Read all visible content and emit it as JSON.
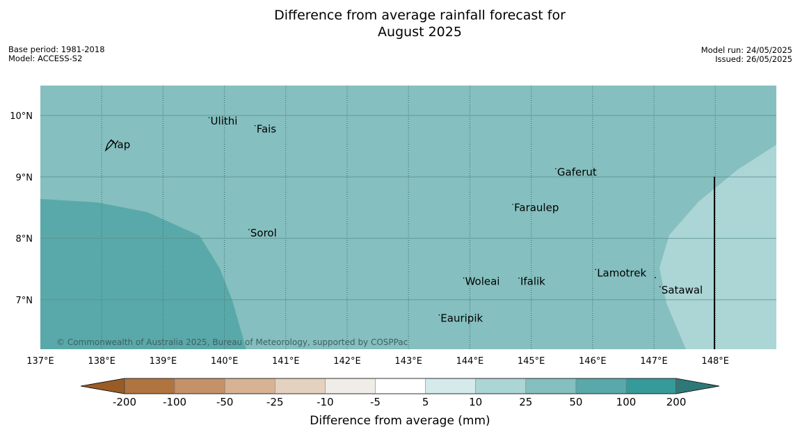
{
  "title_line1": "Difference from average rainfall forecast for",
  "title_line2": "August 2025",
  "base_period": "Base period: 1981-2018",
  "model": "Model: ACCESS-S2",
  "model_run": "Model run: 24/05/2025",
  "issued": "Issued: 26/05/2025",
  "copyright": "© Commonwealth of Australia 2025, Bureau of Meteorology, supported by COSPPac",
  "map": {
    "lon_range": [
      137,
      149
    ],
    "lat_range": [
      6.2,
      10.5
    ],
    "lon_labels": [
      "137°E",
      "138°E",
      "139°E",
      "140°E",
      "141°E",
      "142°E",
      "143°E",
      "144°E",
      "145°E",
      "146°E",
      "147°E",
      "148°E"
    ],
    "lat_labels": [
      "10°N",
      "9°N",
      "8°N",
      "7°N"
    ],
    "places": [
      {
        "name": "Ulithi",
        "lon": 139.75,
        "lat": 9.85
      },
      {
        "name": "Fais",
        "lon": 140.5,
        "lat": 9.72
      },
      {
        "name": "Yap",
        "lon": 138.15,
        "lat": 9.47
      },
      {
        "name": "Gaferut",
        "lon": 145.4,
        "lat": 9.02
      },
      {
        "name": "Faraulep",
        "lon": 144.7,
        "lat": 8.44
      },
      {
        "name": "Sorol",
        "lon": 140.4,
        "lat": 8.03
      },
      {
        "name": "Lamotrek",
        "lon": 146.05,
        "lat": 7.38
      },
      {
        "name": "Woleai",
        "lon": 143.9,
        "lat": 7.24
      },
      {
        "name": "Ifalik",
        "lon": 144.8,
        "lat": 7.24
      },
      {
        "name": "Satawal",
        "lon": 147.1,
        "lat": 7.1
      },
      {
        "name": "Eauripik",
        "lon": 143.5,
        "lat": 6.64
      }
    ],
    "colors": {
      "ocean_25_50": "#85bfbf",
      "band_50_100": "#5aa9aa",
      "band_10_25": "#acd5d5",
      "grid": "#3a6f70"
    }
  },
  "colorbar": {
    "title": "Difference from average (mm)",
    "ticks": [
      "-200",
      "-100",
      "-50",
      "-25",
      "-10",
      "-5",
      "5",
      "10",
      "25",
      "50",
      "100",
      "200"
    ],
    "colors": [
      "#995c26",
      "#b07440",
      "#c49169",
      "#d6b394",
      "#e5d1c0",
      "#f0ece7",
      "#ffffff",
      "#d5eaea",
      "#acd5d5",
      "#85bfbf",
      "#5aa9aa",
      "#369a9a",
      "#2e7878"
    ]
  }
}
